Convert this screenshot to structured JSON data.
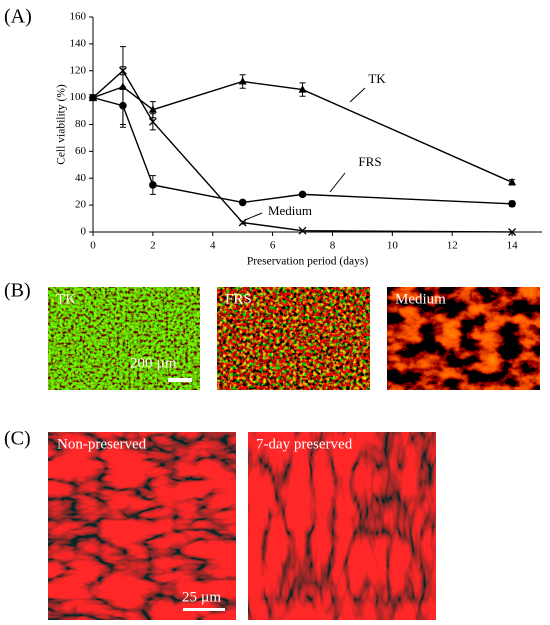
{
  "chart_data": {
    "type": "line",
    "x_label": "Preservation period (days)",
    "y_label": "Cell viability (%)",
    "x": [
      0,
      1,
      2,
      5,
      7,
      14
    ],
    "series": [
      {
        "name": "TK",
        "color": "#000000",
        "marker": "triangle",
        "values": [
          100,
          108,
          91,
          112,
          106,
          37
        ],
        "errors": [
          0,
          30,
          6,
          5,
          5,
          2
        ]
      },
      {
        "name": "FRS",
        "color": "#000000",
        "marker": "circle",
        "values": [
          100,
          94,
          35,
          22,
          28,
          21
        ],
        "errors": [
          0,
          14,
          7,
          1,
          1,
          2
        ]
      },
      {
        "name": "Medium",
        "color": "#000000",
        "marker": "x",
        "values": [
          100,
          120,
          82,
          7,
          1,
          0
        ],
        "errors": [
          0,
          3,
          6,
          1,
          0,
          0
        ]
      }
    ],
    "xlim": [
      0,
      15
    ],
    "xticks": [
      0,
      2,
      4,
      6,
      8,
      10,
      12,
      14
    ],
    "ylim": [
      0,
      160
    ],
    "yticks": [
      0,
      20,
      40,
      60,
      80,
      100,
      120,
      140,
      160
    ]
  },
  "panel_labels": [
    "(A)",
    "(B)",
    "(C)"
  ],
  "panel_b": {
    "images": [
      "TK",
      "FRS",
      "Medium"
    ],
    "scale_bar": "200 µm"
  },
  "panel_c": {
    "images": [
      "Non-preserved",
      "7-day preserved"
    ],
    "scale_bar": "25 µm"
  }
}
